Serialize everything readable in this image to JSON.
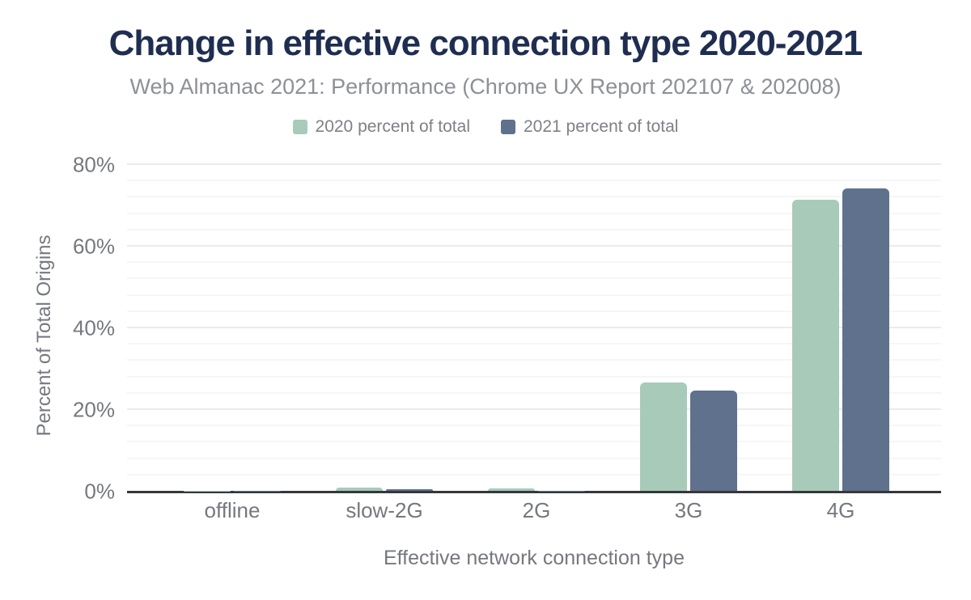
{
  "chart_data": {
    "type": "bar",
    "title": "Change in effective connection type 2020-2021",
    "subtitle": "Web Almanac 2021: Performance (Chrome UX Report 202107 & 202008)",
    "categories": [
      "offline",
      "slow-2G",
      "2G",
      "3G",
      "4G"
    ],
    "series": [
      {
        "name": "2020 percent of total",
        "color": "#a8cbb9",
        "values": [
          0.1,
          0.8,
          0.5,
          26.6,
          71.3
        ]
      },
      {
        "name": "2021 percent of total",
        "color": "#5f718c",
        "values": [
          0.1,
          0.4,
          0.1,
          24.5,
          74.1
        ]
      }
    ],
    "xlabel": "Effective network connection type",
    "ylabel": "Percent of Total Origins",
    "ylim": [
      0,
      80
    ],
    "yticks": [
      0,
      20,
      40,
      60,
      80
    ],
    "ytick_format": "{v}%",
    "minor_grid_step": 4,
    "major_grid_step": 20,
    "grid": true,
    "legend_position": "top"
  },
  "colors": {
    "title": "#1f2e50",
    "subtitle": "#8d9096",
    "legend_text": "#7d8187",
    "axis_label": "#75787f",
    "axis_line": "#36373c",
    "grid_major": "#ebebeb",
    "grid_minor": "#f6f6f6"
  }
}
